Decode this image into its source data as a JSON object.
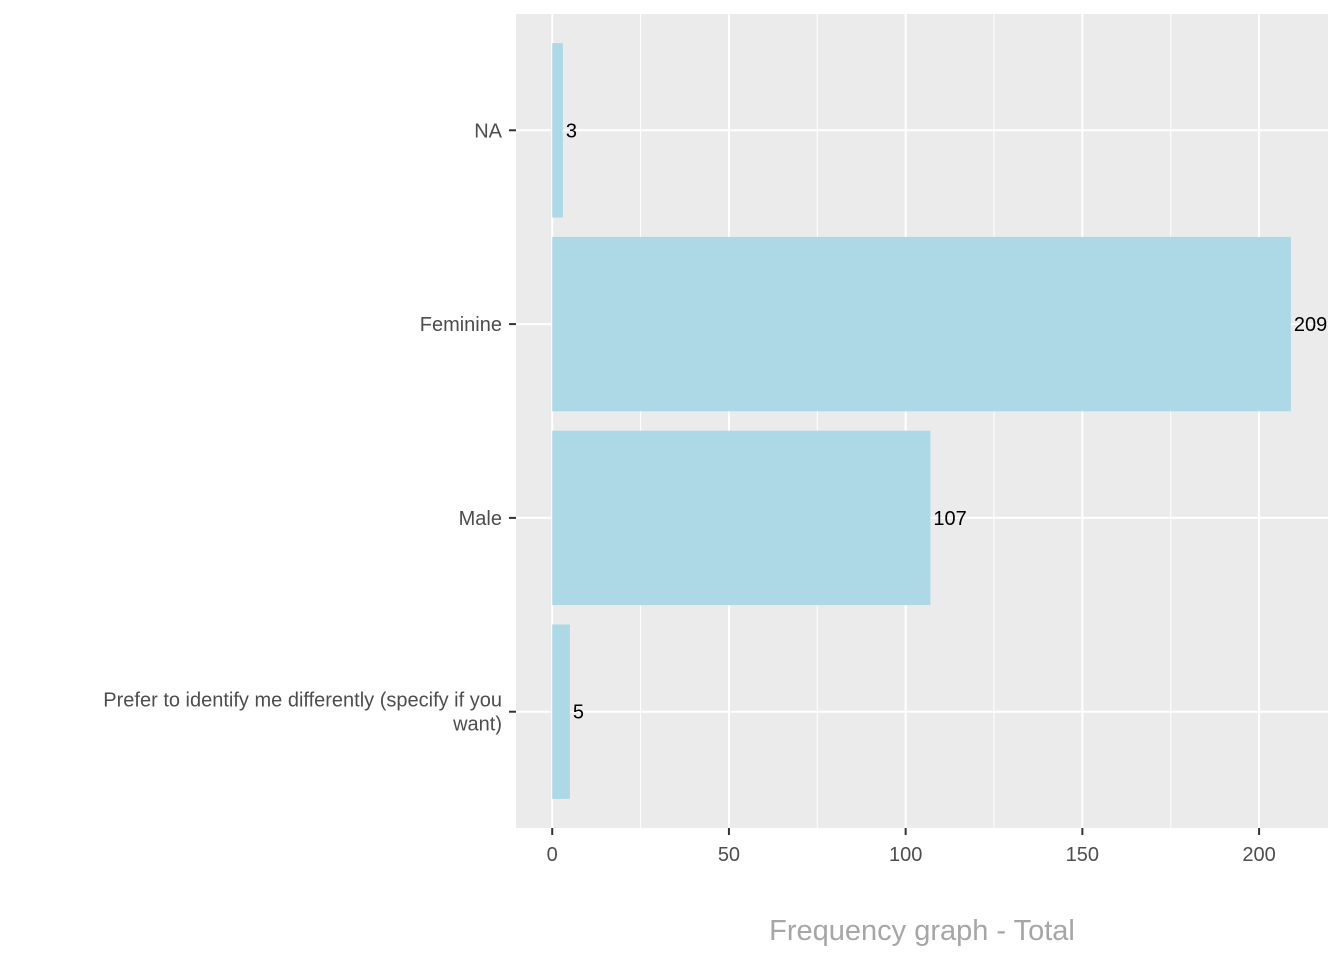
{
  "chart_data": {
    "type": "bar",
    "orientation": "horizontal",
    "categories": [
      "NA",
      "Feminine",
      "Male",
      "Prefer to identify me differently (specify if you want)"
    ],
    "category_display_lines": [
      [
        "NA"
      ],
      [
        "Feminine"
      ],
      [
        "Male"
      ],
      [
        "Prefer to identify me differently (specify if you",
        "want)"
      ]
    ],
    "values": [
      3,
      209,
      107,
      5
    ],
    "data_labels": [
      "3",
      "209",
      "107",
      "5"
    ],
    "x_ticks": [
      0,
      50,
      100,
      150,
      200
    ],
    "x_tick_labels": [
      "0",
      "50",
      "100",
      "150",
      "200"
    ],
    "xlim": [
      -10.25,
      219.5
    ],
    "title": "",
    "xlabel": "Frequency graph - Total",
    "ylabel": "",
    "grid": true,
    "legend": "none",
    "colors": {
      "bar": "#add8e6",
      "panel_background": "#ebebeb",
      "grid": "#ffffff",
      "tick_text": "#4d4d4d",
      "axis_title": "#a6a6a6",
      "data_label": "#000000"
    }
  }
}
